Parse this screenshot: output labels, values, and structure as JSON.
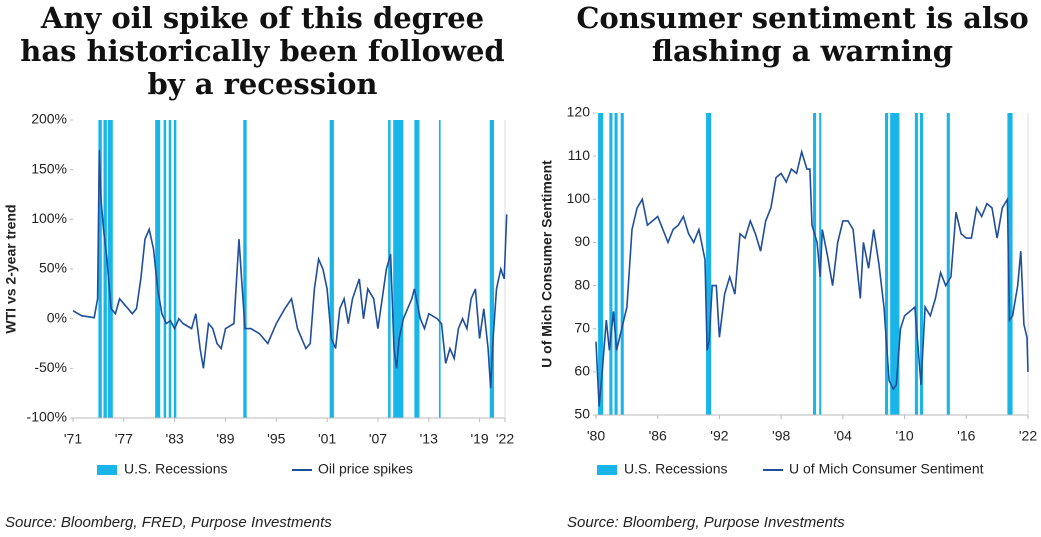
{
  "chart_data": [
    {
      "type": "line",
      "title": "Any oil spike of this degree has historically been followed by a recession",
      "ylabel": "WTI vs 2-year trend",
      "source": "Source: Bloomberg, FRED, Purpose Investments",
      "xlim": [
        1971,
        2022
      ],
      "xticks": [
        {
          "value": 1971,
          "label": "'71"
        },
        {
          "value": 1977,
          "label": "'77"
        },
        {
          "value": 1983,
          "label": "'83"
        },
        {
          "value": 1989,
          "label": "'89"
        },
        {
          "value": 1995,
          "label": "'95"
        },
        {
          "value": 2001,
          "label": "'01"
        },
        {
          "value": 2007,
          "label": "'07"
        },
        {
          "value": 2013,
          "label": "'13"
        },
        {
          "value": 2019,
          "label": "'19"
        },
        {
          "value": 2022,
          "label": "'22"
        }
      ],
      "ylim": [
        -100,
        200
      ],
      "yticks": [
        {
          "value": -100,
          "label": "-100%"
        },
        {
          "value": -50,
          "label": "-50%"
        },
        {
          "value": 0,
          "label": "0%"
        },
        {
          "value": 50,
          "label": "50%"
        },
        {
          "value": 100,
          "label": "100%"
        },
        {
          "value": 150,
          "label": "150%"
        },
        {
          "value": 200,
          "label": "200%"
        }
      ],
      "recessions": {
        "name": "U.S. Recessions",
        "color": "#19b5e9",
        "periods": [
          [
            1974.0,
            1974.4
          ],
          [
            1974.6,
            1975.0
          ],
          [
            1975.1,
            1975.7
          ],
          [
            1980.7,
            1981.3
          ],
          [
            1981.7,
            1982.0
          ],
          [
            1982.3,
            1982.6
          ],
          [
            1982.9,
            1983.2
          ],
          [
            1991.1,
            1991.5
          ],
          [
            2001.3,
            2001.8
          ],
          [
            2008.2,
            2008.5
          ],
          [
            2008.8,
            2010.0
          ],
          [
            2011.3,
            2011.9
          ],
          [
            2014.2,
            2014.4
          ],
          [
            2020.2,
            2020.7
          ]
        ]
      },
      "x": [
        1971,
        1972,
        1973.5,
        1973.9,
        1974.1,
        1974.3,
        1974.6,
        1975,
        1975.5,
        1976,
        1976.5,
        1977.5,
        1978,
        1978.5,
        1979,
        1979.5,
        1980,
        1980.5,
        1981,
        1981.5,
        1982,
        1982.5,
        1983,
        1983.5,
        1984,
        1985,
        1985.5,
        1986,
        1986.4,
        1987,
        1987.5,
        1988,
        1988.5,
        1989,
        1990,
        1990.6,
        1990.9,
        1991.3,
        1992,
        1993,
        1994,
        1995,
        1996,
        1996.8,
        1997.5,
        1998.5,
        1999,
        1999.5,
        2000,
        2000.5,
        2001,
        2001.5,
        2002,
        2002.5,
        2003,
        2003.5,
        2004,
        2004.8,
        2005.3,
        2005.8,
        2006.5,
        2007,
        2007.5,
        2008,
        2008.5,
        2008.9,
        2009.2,
        2009.5,
        2010,
        2010.5,
        2011,
        2011.3,
        2012,
        2012.5,
        2013,
        2014,
        2014.5,
        2015,
        2015.5,
        2016,
        2016.5,
        2017,
        2017.5,
        2018,
        2018.5,
        2019,
        2019.5,
        2020,
        2020.3,
        2020.6,
        2021,
        2021.5,
        2021.9,
        2022.2
      ],
      "series": [
        {
          "name": "Oil price spikes",
          "color": "#1f4e9c",
          "values": [
            8,
            3,
            1,
            20,
            170,
            120,
            90,
            60,
            10,
            5,
            20,
            10,
            5,
            10,
            40,
            80,
            90,
            70,
            30,
            5,
            -5,
            -2,
            -10,
            0,
            -5,
            -10,
            5,
            -30,
            -50,
            -5,
            -10,
            -25,
            -30,
            -10,
            -5,
            80,
            40,
            -10,
            -10,
            -15,
            -25,
            -5,
            10,
            20,
            -10,
            -30,
            -25,
            30,
            60,
            50,
            30,
            -20,
            -30,
            10,
            20,
            -5,
            20,
            40,
            0,
            30,
            20,
            -10,
            20,
            50,
            65,
            -30,
            -50,
            -20,
            0,
            10,
            20,
            30,
            0,
            -10,
            5,
            0,
            -5,
            -45,
            -30,
            -40,
            -10,
            0,
            -10,
            20,
            30,
            -20,
            10,
            -30,
            -70,
            -20,
            30,
            50,
            40,
            105
          ]
        }
      ]
    },
    {
      "type": "line",
      "title": "Consumer sentiment is also flashing a warning",
      "ylabel": "U of Mich Consumer Sentiment",
      "source": "Source: Bloomberg, Purpose Investments",
      "xlim": [
        1980,
        2022
      ],
      "xticks": [
        {
          "value": 1980,
          "label": "'80"
        },
        {
          "value": 1986,
          "label": "'86"
        },
        {
          "value": 1992,
          "label": "'92"
        },
        {
          "value": 1998,
          "label": "'98"
        },
        {
          "value": 2004,
          "label": "'04"
        },
        {
          "value": 2010,
          "label": "'10"
        },
        {
          "value": 2016,
          "label": "'16"
        },
        {
          "value": 2022,
          "label": "'22"
        }
      ],
      "ylim": [
        50,
        120
      ],
      "yticks": [
        50,
        60,
        70,
        80,
        90,
        100,
        110,
        120
      ],
      "recessions": {
        "name": "U.S. Recessions",
        "color": "#19b5e9",
        "periods": [
          [
            1980.2,
            1980.7
          ],
          [
            1981.3,
            1981.6
          ],
          [
            1981.8,
            1982.1
          ],
          [
            1982.4,
            1982.7
          ],
          [
            1990.7,
            1991.2
          ],
          [
            2001.1,
            2001.4
          ],
          [
            2001.7,
            2001.9
          ],
          [
            2008.1,
            2008.4
          ],
          [
            2008.6,
            2009.5
          ],
          [
            2011.0,
            2011.3
          ],
          [
            2011.5,
            2011.8
          ],
          [
            2014.1,
            2014.4
          ],
          [
            2020.0,
            2020.5
          ]
        ]
      },
      "x": [
        1980,
        1980.3,
        1980.6,
        1981,
        1981.3,
        1981.7,
        1982,
        1982.5,
        1983,
        1983.5,
        1984,
        1984.5,
        1985,
        1985.5,
        1986,
        1986.5,
        1987,
        1987.5,
        1988,
        1988.5,
        1989,
        1989.5,
        1990,
        1990.6,
        1990.8,
        1991,
        1991.3,
        1991.7,
        1992,
        1992.5,
        1993,
        1993.5,
        1994,
        1994.5,
        1995,
        1995.5,
        1996,
        1996.5,
        1997,
        1997.5,
        1998,
        1998.5,
        1999,
        1999.5,
        2000,
        2000.5,
        2000.8,
        2001,
        2001.5,
        2001.8,
        2002,
        2002.5,
        2003,
        2003.5,
        2004,
        2004.5,
        2005,
        2005.7,
        2006,
        2006.5,
        2007,
        2007.5,
        2008,
        2008.5,
        2008.9,
        2009.2,
        2009.6,
        2010,
        2010.5,
        2011,
        2011.6,
        2012,
        2012.5,
        2013,
        2013.5,
        2014,
        2014.5,
        2015,
        2015.5,
        2016,
        2016.5,
        2017,
        2017.5,
        2018,
        2018.5,
        2019,
        2019.5,
        2020,
        2020.2,
        2020.5,
        2021,
        2021.3,
        2021.6,
        2021.9,
        2022
      ],
      "series": [
        {
          "name": "U of Mich Consumer Sentiment",
          "color": "#1f4e9c",
          "values": [
            67,
            52,
            60,
            72,
            65,
            74,
            65,
            70,
            75,
            93,
            98,
            100,
            94,
            95,
            96,
            93,
            90,
            93,
            94,
            96,
            92,
            90,
            93,
            86,
            65,
            67,
            80,
            80,
            68,
            78,
            82,
            78,
            92,
            91,
            95,
            92,
            88,
            95,
            98,
            105,
            106,
            104,
            107,
            106,
            111,
            107,
            107,
            94,
            90,
            82,
            93,
            87,
            80,
            90,
            95,
            95,
            93,
            77,
            90,
            84,
            93,
            85,
            75,
            58,
            56,
            57,
            70,
            73,
            74,
            75,
            57,
            75,
            73,
            77,
            83,
            80,
            82,
            97,
            92,
            91,
            91,
            98,
            96,
            99,
            98,
            91,
            98,
            100,
            72,
            73,
            80,
            88,
            71,
            68,
            60
          ]
        }
      ]
    }
  ]
}
